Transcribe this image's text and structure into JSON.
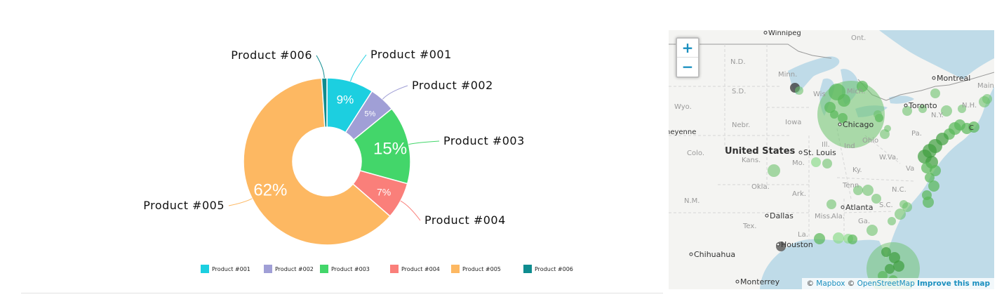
{
  "chart_data": {
    "type": "pie",
    "donut": true,
    "categories": [
      "Product #001",
      "Product #002",
      "Product #003",
      "Product #004",
      "Product #005",
      "Product #006"
    ],
    "values": [
      9,
      5,
      15,
      7,
      62,
      1
    ],
    "labels": [
      "9%",
      "5%",
      "15%",
      "7%",
      "62%",
      ""
    ],
    "colors": [
      "#1ccfe0",
      "#a09fd6",
      "#43d66a",
      "#fa7f7a",
      "#fdb862",
      "#0e8c8f"
    ],
    "legend": "bottom"
  },
  "map": {
    "zoom_in_label": "+",
    "zoom_out_label": "−",
    "attribution": {
      "copyright1": "©",
      "mapbox": "Mapbox",
      "copyright2": "©",
      "osm": "OpenStreetMap",
      "improve": "Improve this map"
    },
    "places": {
      "winnipeg": "Winnipeg",
      "ont": "Ont.",
      "nd": "N.D.",
      "minn": "Minn.",
      "sd": "S.D.",
      "wyo": "Wyo.",
      "nebr": "Nebr.",
      "iowa": "Iowa",
      "cheyenne": "heyenne",
      "colo": "Colo.",
      "us": "United States",
      "kans": "Kans.",
      "stlouis": "St. Louis",
      "mo": "Mo.",
      "ill": "Ill.",
      "ind": "Ind",
      "ohio": "Ohio",
      "wva": "W.Va.",
      "va": "Va",
      "ky": "Ky.",
      "okla": "Okla.",
      "ark": "Ark.",
      "tenn": "Tenn",
      "nc": "N.C.",
      "sc": "S.C.",
      "nm": "N.M.",
      "dallas": "Dallas",
      "atlanta": "Atlanta",
      "miss": "Miss.",
      "ala": "Ala.",
      "ga": "Ga.",
      "tex": "Tex.",
      "la": "La.",
      "houston": "Houston",
      "chihuahua": "Chihuahua",
      "monterrey": "Monterrey",
      "chicago": "Chicago",
      "wis": "Wis",
      "mich": "Mich.",
      "toronto": "Toronto",
      "montreal": "Montreal",
      "maine": "Maine",
      "nh": "N.H.",
      "ny": "N.Y.",
      "pa": "Pa.",
      "c": "C"
    }
  }
}
